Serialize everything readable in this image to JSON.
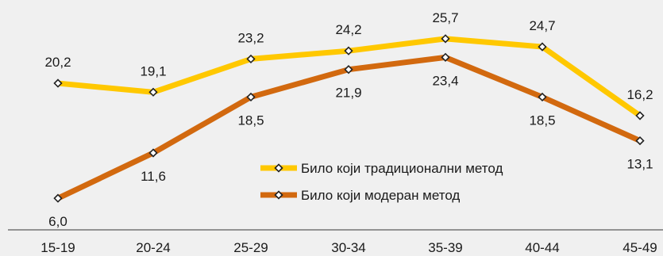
{
  "chart_data": {
    "type": "line",
    "categories": [
      "15-19",
      "20-24",
      "25-29",
      "30-34",
      "35-39",
      "40-44",
      "45-49"
    ],
    "series": [
      {
        "name": "Било који традиционални метод",
        "values": [
          20.2,
          19.1,
          23.2,
          24.2,
          25.7,
          24.7,
          16.2
        ],
        "labels": [
          "20,2",
          "19,1",
          "23,2",
          "24,2",
          "25,7",
          "24,7",
          "16,2"
        ],
        "color": "#FFC800",
        "label_position": "above"
      },
      {
        "name": "Било који модеран метод",
        "values": [
          6.0,
          11.6,
          18.5,
          21.9,
          23.4,
          18.5,
          13.1
        ],
        "labels": [
          "6,0",
          "11,6",
          "18,5",
          "21,9",
          "23,4",
          "18,5",
          "13,1"
        ],
        "color": "#D2690F",
        "label_position": "below"
      }
    ],
    "legend_placement": "bottom-right inside plot",
    "grid": false,
    "marker": "hollow diamond",
    "background_color": "#F0F0F0"
  }
}
